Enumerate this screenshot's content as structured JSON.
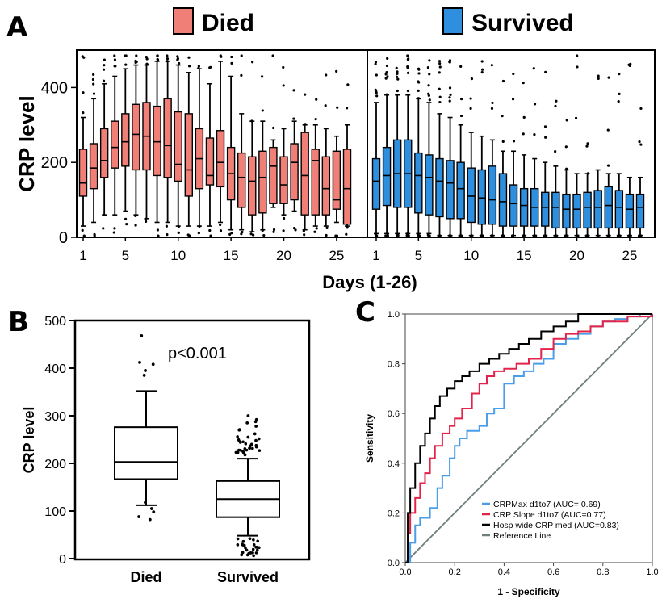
{
  "panels": {
    "a": {
      "label": "A"
    },
    "b": {
      "label": "B"
    },
    "c": {
      "label": "C"
    }
  },
  "colors": {
    "died": "#f08077",
    "survived": "#2f8fdf",
    "box_b": "#ffffff",
    "roc_max": "#4a9ee8",
    "roc_slope": "#e2234a",
    "roc_hosp": "#000000",
    "roc_ref": "#6f7f7f"
  },
  "chart_data": [
    {
      "type": "boxplot",
      "panel": "A",
      "legend": [
        {
          "name": "Died",
          "color": "#f08077"
        },
        {
          "name": "Survived",
          "color": "#2f8fdf"
        }
      ],
      "xlabel": "Days (1-26)",
      "ylabel": "CRP level",
      "ylim": [
        0,
        500
      ],
      "yticks": [
        0,
        200,
        400
      ],
      "xticks": [
        1,
        5,
        10,
        15,
        20,
        25
      ],
      "series": [
        {
          "name": "Died",
          "days": [
            1,
            2,
            3,
            4,
            5,
            6,
            7,
            8,
            9,
            10,
            11,
            12,
            13,
            14,
            15,
            16,
            17,
            18,
            19,
            20,
            21,
            22,
            23,
            24,
            25,
            26
          ],
          "q1": [
            110,
            130,
            160,
            185,
            190,
            180,
            180,
            165,
            160,
            150,
            110,
            130,
            140,
            135,
            100,
            80,
            60,
            65,
            90,
            90,
            100,
            60,
            60,
            60,
            75,
            35
          ],
          "median": [
            145,
            185,
            205,
            240,
            255,
            275,
            270,
            255,
            245,
            195,
            180,
            210,
            165,
            200,
            170,
            160,
            150,
            160,
            190,
            140,
            200,
            165,
            205,
            130,
            100,
            130
          ],
          "q3": [
            235,
            250,
            290,
            310,
            330,
            355,
            360,
            350,
            370,
            335,
            330,
            290,
            265,
            285,
            240,
            225,
            215,
            230,
            240,
            215,
            250,
            280,
            235,
            215,
            230,
            235
          ],
          "lo": [
            30,
            40,
            60,
            60,
            70,
            60,
            50,
            40,
            40,
            30,
            30,
            30,
            30,
            40,
            20,
            20,
            15,
            20,
            80,
            60,
            70,
            20,
            30,
            30,
            40,
            30
          ],
          "hi": [
            320,
            370,
            410,
            430,
            450,
            460,
            460,
            470,
            470,
            460,
            440,
            450,
            410,
            470,
            430,
            330,
            310,
            310,
            260,
            290,
            310,
            300,
            300,
            290,
            270,
            300
          ]
        },
        {
          "name": "Survived",
          "days": [
            1,
            2,
            3,
            4,
            5,
            6,
            7,
            8,
            9,
            10,
            11,
            12,
            13,
            14,
            15,
            16,
            17,
            18,
            19,
            20,
            21,
            22,
            23,
            24,
            25,
            26
          ],
          "q1": [
            75,
            85,
            80,
            80,
            65,
            60,
            55,
            50,
            50,
            40,
            35,
            35,
            30,
            30,
            30,
            30,
            30,
            25,
            25,
            25,
            25,
            25,
            25,
            25,
            25,
            25
          ],
          "median": [
            150,
            165,
            170,
            170,
            165,
            160,
            150,
            145,
            130,
            110,
            105,
            100,
            95,
            90,
            85,
            80,
            80,
            80,
            75,
            75,
            80,
            80,
            85,
            80,
            75,
            80
          ],
          "q3": [
            210,
            240,
            260,
            260,
            225,
            220,
            210,
            205,
            200,
            185,
            180,
            190,
            170,
            140,
            130,
            130,
            120,
            120,
            115,
            115,
            120,
            125,
            135,
            125,
            115,
            115
          ],
          "lo": [
            10,
            10,
            10,
            10,
            10,
            10,
            5,
            5,
            5,
            5,
            5,
            5,
            5,
            5,
            5,
            5,
            5,
            5,
            5,
            5,
            5,
            5,
            5,
            5,
            5,
            5
          ],
          "hi": [
            360,
            380,
            380,
            380,
            370,
            360,
            330,
            320,
            300,
            280,
            270,
            260,
            230,
            230,
            220,
            210,
            200,
            190,
            180,
            170,
            170,
            180,
            170,
            170,
            160,
            160
          ]
        }
      ]
    },
    {
      "type": "boxplot",
      "panel": "B",
      "categories": [
        "Died",
        "Survived"
      ],
      "ylabel": "CRP level",
      "ylim": [
        0,
        500
      ],
      "yticks": [
        0,
        100,
        200,
        300,
        400,
        500
      ],
      "annotation": "p<0.001",
      "boxes": [
        {
          "name": "Died",
          "lo": 112,
          "q1": 167,
          "median": 203,
          "q3": 276,
          "hi": 352,
          "outliers": [
            468,
            412,
            408,
            395,
            385,
            118,
            105,
            98,
            88,
            82
          ]
        },
        {
          "name": "Survived",
          "lo": 48,
          "q1": 87,
          "median": 125,
          "q3": 163,
          "hi": 210,
          "outliers": [
            300,
            292,
            285,
            278,
            270,
            262,
            255,
            248,
            240,
            232,
            225,
            218,
            42,
            36,
            30,
            24,
            18,
            12,
            8
          ]
        }
      ]
    },
    {
      "type": "line",
      "panel": "C",
      "xlabel": "1 - Specificity",
      "ylabel": "Sensitivity",
      "xlim": [
        0,
        1
      ],
      "ylim": [
        0,
        1
      ],
      "xticks": [
        "0.0",
        "0.2",
        "0.4",
        "0.6",
        "0.8",
        "1.0"
      ],
      "yticks": [
        "0.0",
        "0.2",
        "0.4",
        "0.6",
        "0.8",
        "1.0"
      ],
      "series": [
        {
          "name": "CRPMax d1to7 (AUC= 0.69)",
          "color": "#4a9ee8",
          "x": [
            0,
            0.02,
            0.04,
            0.06,
            0.1,
            0.13,
            0.15,
            0.18,
            0.2,
            0.22,
            0.25,
            0.3,
            0.33,
            0.36,
            0.4,
            0.44,
            0.48,
            0.52,
            0.56,
            0.6,
            0.65,
            0.7,
            0.75,
            0.8,
            0.85,
            0.9,
            0.95,
            1.0
          ],
          "y": [
            0,
            0.08,
            0.15,
            0.18,
            0.22,
            0.3,
            0.35,
            0.42,
            0.47,
            0.5,
            0.53,
            0.55,
            0.6,
            0.62,
            0.72,
            0.75,
            0.77,
            0.8,
            0.82,
            0.88,
            0.9,
            0.92,
            0.95,
            0.97,
            0.98,
            0.99,
            1.0,
            1.0
          ]
        },
        {
          "name": "CRP Slope d1to7 (AUC=0.77)",
          "color": "#e2234a",
          "x": [
            0,
            0.01,
            0.02,
            0.04,
            0.06,
            0.08,
            0.1,
            0.12,
            0.15,
            0.18,
            0.2,
            0.23,
            0.27,
            0.3,
            0.33,
            0.36,
            0.4,
            0.45,
            0.5,
            0.55,
            0.6,
            0.65,
            0.7,
            0.75,
            0.8,
            0.9,
            1.0
          ],
          "y": [
            0,
            0.12,
            0.2,
            0.26,
            0.32,
            0.36,
            0.42,
            0.47,
            0.52,
            0.55,
            0.58,
            0.62,
            0.68,
            0.72,
            0.75,
            0.77,
            0.78,
            0.8,
            0.82,
            0.86,
            0.9,
            0.92,
            0.93,
            0.95,
            0.97,
            0.99,
            1.0
          ]
        },
        {
          "name": "Hosp wide CRP med (AUC=0.83)",
          "color": "#000000",
          "x": [
            0,
            0.01,
            0.02,
            0.04,
            0.06,
            0.08,
            0.1,
            0.12,
            0.14,
            0.17,
            0.2,
            0.23,
            0.26,
            0.3,
            0.34,
            0.38,
            0.42,
            0.46,
            0.5,
            0.55,
            0.6,
            0.65,
            0.7,
            0.75,
            0.8,
            0.9,
            1.0
          ],
          "y": [
            0,
            0.2,
            0.3,
            0.4,
            0.47,
            0.52,
            0.58,
            0.63,
            0.67,
            0.7,
            0.73,
            0.75,
            0.77,
            0.8,
            0.82,
            0.84,
            0.86,
            0.88,
            0.9,
            0.93,
            0.95,
            0.97,
            1.0,
            1.0,
            1.0,
            1.0,
            1.0
          ]
        },
        {
          "name": "Reference Line",
          "color": "#6f7f7f",
          "x": [
            0,
            1
          ],
          "y": [
            0,
            1
          ]
        }
      ]
    }
  ]
}
